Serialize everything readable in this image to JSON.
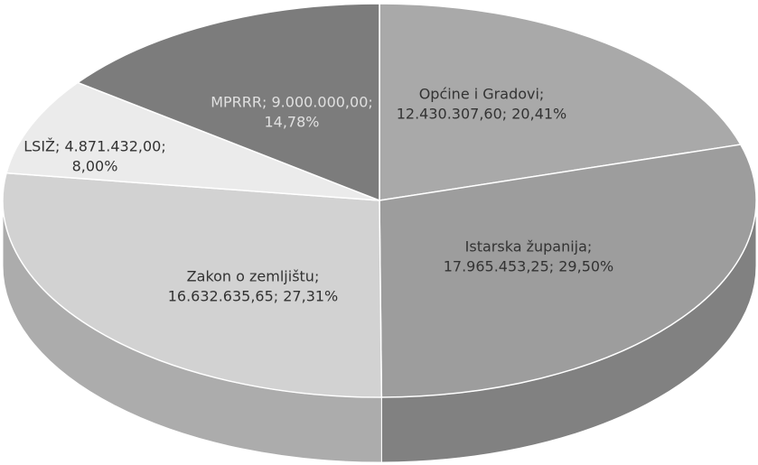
{
  "chart_data": {
    "type": "pie",
    "values": [
      12430307.6,
      17965453.25,
      16632635.65,
      4871432.0,
      9000000.0
    ],
    "value_labels": [
      [
        "Općine i Gradovi;",
        "12.430.307,60; 20,41%"
      ],
      [
        "Istarska županija;",
        "17.965.453,25; 29,50%"
      ],
      [
        "Zakon o zemljištu;",
        "16.632.635,65; 27,31%"
      ],
      [
        "LSIŽ; 4.871.432,00;",
        "8,00%"
      ],
      [
        "MPRRR; 9.000.000,00;",
        "14,78%"
      ]
    ],
    "colors": [
      "#a9a9a9",
      "#9d9d9d",
      "#d2d2d2",
      "#ebebeb",
      "#7c7c7c"
    ]
  }
}
